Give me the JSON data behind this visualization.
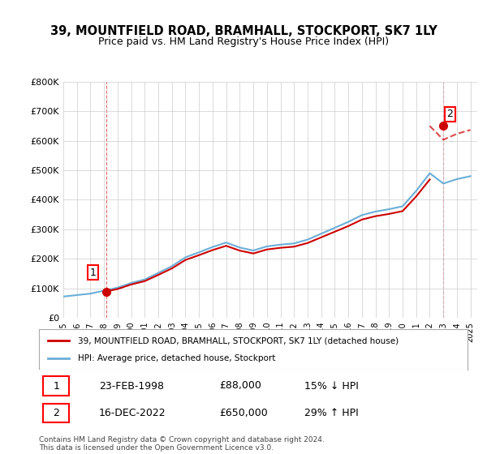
{
  "title": "39, MOUNTFIELD ROAD, BRAMHALL, STOCKPORT, SK7 1LY",
  "subtitle": "Price paid vs. HM Land Registry's House Price Index (HPI)",
  "legend_label1": "39, MOUNTFIELD ROAD, BRAMHALL, STOCKPORT, SK7 1LY (detached house)",
  "legend_label2": "HPI: Average price, detached house, Stockport",
  "purchase1_label": "1",
  "purchase1_date": "23-FEB-1998",
  "purchase1_price": "£88,000",
  "purchase1_hpi": "15% ↓ HPI",
  "purchase2_label": "2",
  "purchase2_date": "16-DEC-2022",
  "purchase2_price": "£650,000",
  "purchase2_hpi": "29% ↑ HPI",
  "footer": "Contains HM Land Registry data © Crown copyright and database right 2024.\nThis data is licensed under the Open Government Licence v3.0.",
  "hpi_color": "#6baed6",
  "price_color": "#cc0000",
  "bg_color": "#ffffff",
  "grid_color": "#cccccc",
  "ylim": [
    0,
    800000
  ],
  "yticks": [
    0,
    100000,
    200000,
    300000,
    400000,
    500000,
    600000,
    700000,
    800000
  ],
  "ytick_labels": [
    "£0",
    "£100K",
    "£200K",
    "£300K",
    "£400K",
    "£500K",
    "£600K",
    "£700K",
    "£800K"
  ],
  "hpi_years": [
    1995,
    1996,
    1997,
    1998,
    1999,
    2000,
    2001,
    2002,
    2003,
    2004,
    2005,
    2006,
    2007,
    2008,
    2009,
    2010,
    2011,
    2012,
    2013,
    2014,
    2015,
    2016,
    2017,
    2018,
    2019,
    2020,
    2021,
    2022,
    2023,
    2024,
    2025
  ],
  "hpi_values": [
    72000,
    77000,
    82000,
    92000,
    102000,
    118000,
    130000,
    152000,
    175000,
    205000,
    222000,
    240000,
    255000,
    238000,
    228000,
    242000,
    248000,
    252000,
    265000,
    285000,
    305000,
    325000,
    348000,
    360000,
    368000,
    378000,
    430000,
    490000,
    455000,
    470000,
    480000
  ],
  "price_points_x": [
    1998.15,
    2022.96
  ],
  "price_points_y": [
    88000,
    650000
  ],
  "xtick_years": [
    1995,
    1996,
    1997,
    1998,
    1999,
    2000,
    2001,
    2002,
    2003,
    2004,
    2005,
    2006,
    2007,
    2008,
    2009,
    2010,
    2011,
    2012,
    2013,
    2014,
    2015,
    2016,
    2017,
    2018,
    2019,
    2020,
    2021,
    2022,
    2023,
    2024,
    2025
  ]
}
